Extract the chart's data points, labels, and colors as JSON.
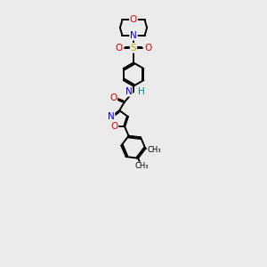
{
  "bg_color": "#ebebeb",
  "atom_colors": {
    "C": "#000000",
    "N": "#0000ee",
    "O": "#ee0000",
    "S": "#bbaa00",
    "H": "#008888"
  },
  "bond_color": "#000000",
  "bond_width": 1.4,
  "fig_w": 3.0,
  "fig_h": 3.0,
  "dpi": 100
}
